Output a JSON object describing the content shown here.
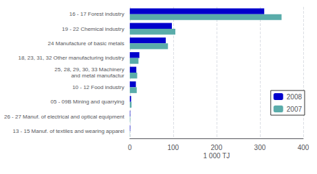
{
  "chart_data": {
    "type": "bar",
    "orientation": "horizontal",
    "categories": [
      "16 - 17 Forest industry",
      "19 - 22 Chemical industry",
      "24 Manufacture of basic metals",
      "18, 23, 31, 32 Other manufacturing industry",
      "25, 28, 29, 30, 33 Machinery\nand metal manufactur",
      "10 - 12 Food industry",
      "05 - 09B Mining and quarrying",
      "26 - 27 Manuf. of electrical and optical equipment",
      "13 - 15 Manuf. of textiles and wearing apparel"
    ],
    "series": [
      {
        "name": "2008",
        "color": "#0000CC",
        "values": [
          310,
          97,
          83,
          22,
          15,
          14,
          3,
          1,
          1
        ]
      },
      {
        "name": "2007",
        "color": "#5AACAA",
        "values": [
          350,
          105,
          88,
          20,
          17,
          16,
          4,
          1,
          0.5
        ]
      }
    ],
    "xlabel": "1 000 TJ",
    "xlim": [
      0,
      400
    ],
    "xticks": [
      0,
      100,
      200,
      300,
      400
    ],
    "grid": true,
    "legend": "right"
  }
}
